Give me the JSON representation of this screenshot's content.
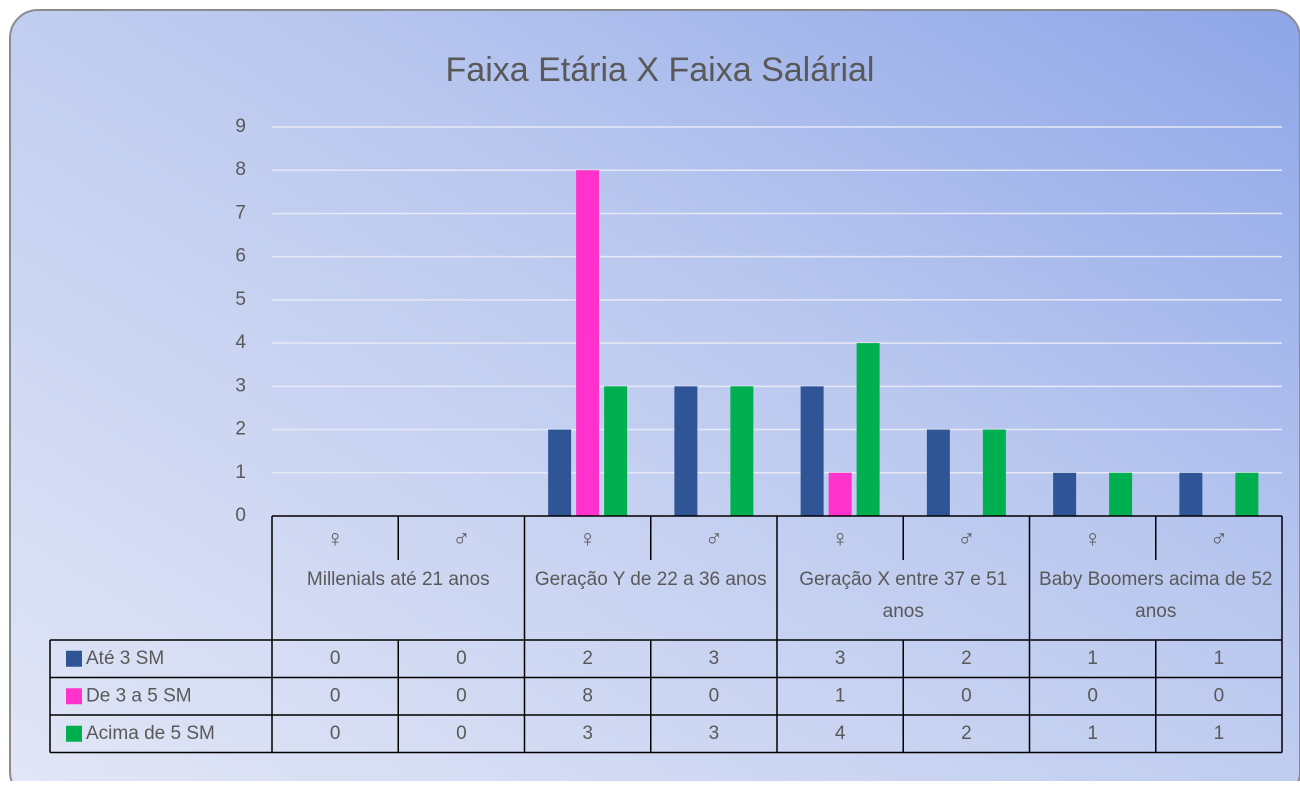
{
  "chart_data": {
    "type": "bar",
    "title": "Faixa Etária X Faixa Salárial",
    "categories": [
      "♀",
      "♂",
      "♀",
      "♂",
      "♀",
      "♂",
      "♀",
      "♂"
    ],
    "groups": [
      "Millenials até 21 anos",
      "Geração Y de 22 a 36 anos",
      "Geração X entre 37 e 51 anos",
      "Baby Boomers acima de 52 anos"
    ],
    "series": [
      {
        "name": "Até 3 SM",
        "color": "#2f5597",
        "values": [
          0,
          0,
          2,
          3,
          3,
          2,
          1,
          1
        ]
      },
      {
        "name": "De 3 a 5 SM",
        "color": "#ff33cc",
        "values": [
          0,
          0,
          8,
          0,
          1,
          0,
          0,
          0
        ]
      },
      {
        "name": "Acima de 5 SM",
        "color": "#00b050",
        "values": [
          0,
          0,
          3,
          3,
          4,
          2,
          1,
          1
        ]
      }
    ],
    "ylim": [
      0,
      9
    ],
    "yticks": [
      0,
      1,
      2,
      3,
      4,
      5,
      6,
      7,
      8,
      9
    ],
    "grid": true
  }
}
